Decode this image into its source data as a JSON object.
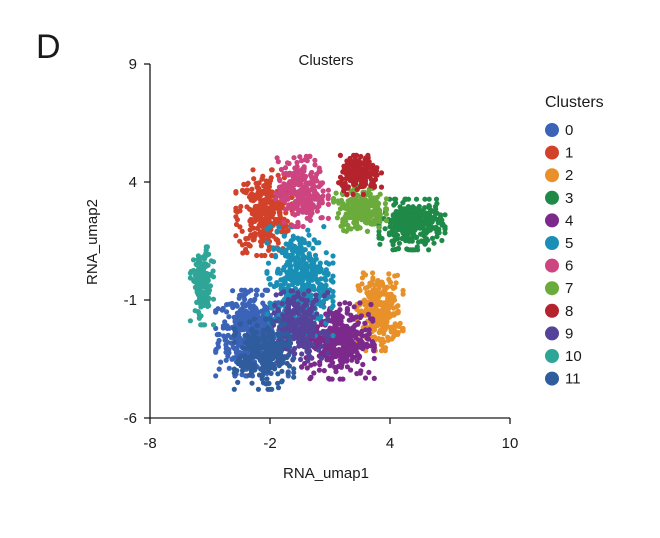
{
  "panel_label": "D",
  "chart_data": {
    "type": "scatter",
    "title": "Clusters",
    "xlabel": "RNA_umap1",
    "ylabel": "RNA_umap2",
    "xlim": [
      -8,
      10
    ],
    "ylim": [
      -6,
      9
    ],
    "xticks": [
      "-8",
      "-2",
      "4",
      "10"
    ],
    "yticks": [
      "-6",
      "-1",
      "4",
      "9"
    ],
    "xtick_values": [
      -8,
      -2,
      4,
      10
    ],
    "ytick_values": [
      -6,
      -1,
      4,
      9
    ],
    "grid": false,
    "legend": {
      "title": "Clusters",
      "placement": "right"
    },
    "series": [
      {
        "name": "0",
        "color": "#3b63b8",
        "center": [
          -2.9,
          -2.4
        ],
        "spread": [
          1.1,
          1.1
        ],
        "n": 460
      },
      {
        "name": "1",
        "color": "#d2422a",
        "center": [
          -2.3,
          2.7
        ],
        "spread": [
          0.85,
          1.1
        ],
        "n": 330
      },
      {
        "name": "2",
        "color": "#e8902a",
        "center": [
          3.5,
          -1.5
        ],
        "spread": [
          0.7,
          1.0
        ],
        "n": 300
      },
      {
        "name": "3",
        "color": "#1f8a48",
        "center": [
          5.1,
          2.2
        ],
        "spread": [
          1.0,
          0.65
        ],
        "n": 330
      },
      {
        "name": "4",
        "color": "#7b2a8c",
        "center": [
          1.4,
          -2.7
        ],
        "spread": [
          1.1,
          1.0
        ],
        "n": 380
      },
      {
        "name": "5",
        "color": "#1a8fb5",
        "center": [
          -0.5,
          -0.2
        ],
        "spread": [
          1.0,
          1.4
        ],
        "n": 420
      },
      {
        "name": "6",
        "color": "#cc4480",
        "center": [
          -0.4,
          3.6
        ],
        "spread": [
          0.8,
          0.9
        ],
        "n": 260
      },
      {
        "name": "7",
        "color": "#6aab3c",
        "center": [
          2.5,
          2.9
        ],
        "spread": [
          0.8,
          0.6
        ],
        "n": 220
      },
      {
        "name": "8",
        "color": "#b5232d",
        "center": [
          2.5,
          4.3
        ],
        "spread": [
          0.65,
          0.5
        ],
        "n": 170
      },
      {
        "name": "9",
        "color": "#55439a",
        "center": [
          -0.6,
          -2.1
        ],
        "spread": [
          0.9,
          0.9
        ],
        "n": 250
      },
      {
        "name": "10",
        "color": "#2ea596",
        "center": [
          -5.4,
          -0.4
        ],
        "spread": [
          0.35,
          1.0
        ],
        "n": 160
      },
      {
        "name": "11",
        "color": "#2f5c9c",
        "center": [
          -2.3,
          -3.3
        ],
        "spread": [
          0.9,
          0.9
        ],
        "n": 260
      }
    ]
  }
}
